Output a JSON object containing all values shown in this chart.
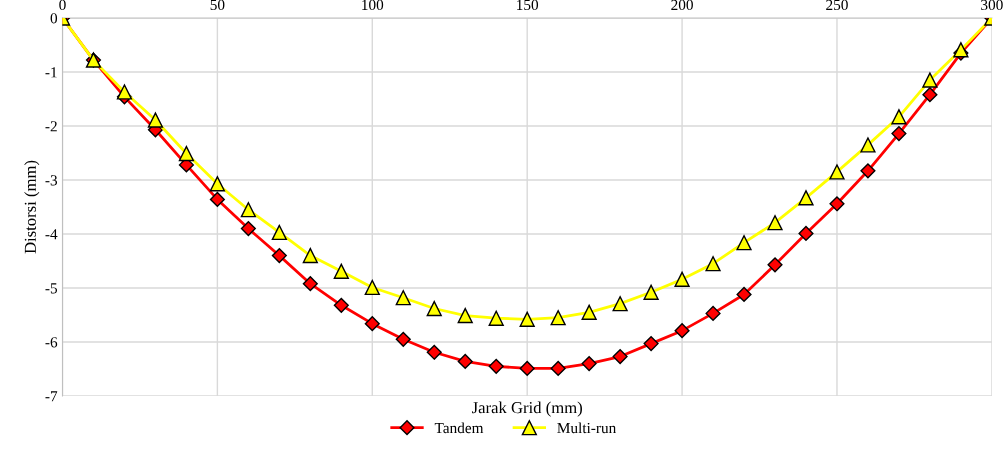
{
  "chart_data": {
    "type": "line",
    "xlabel": "Jarak Grid (mm)",
    "ylabel": "Distorsi (mm)",
    "x": [
      0,
      10,
      20,
      30,
      40,
      50,
      60,
      70,
      80,
      90,
      100,
      110,
      120,
      130,
      140,
      150,
      160,
      170,
      180,
      190,
      200,
      210,
      220,
      230,
      240,
      250,
      260,
      270,
      280,
      290,
      300
    ],
    "series": [
      {
        "name": "Tandem",
        "color": "#ff0000",
        "marker": "diamond",
        "values": [
          0,
          -0.78,
          -1.46,
          -2.07,
          -2.72,
          -3.36,
          -3.9,
          -4.4,
          -4.92,
          -5.32,
          -5.66,
          -5.95,
          -6.19,
          -6.36,
          -6.45,
          -6.49,
          -6.49,
          -6.4,
          -6.27,
          -6.03,
          -5.79,
          -5.47,
          -5.12,
          -4.57,
          -3.99,
          -3.44,
          -2.83,
          -2.14,
          -1.42,
          -0.65,
          0
        ]
      },
      {
        "name": "Multi-run",
        "color": "#ffff00",
        "marker": "triangle",
        "values": [
          0,
          -0.78,
          -1.37,
          -1.89,
          -2.51,
          -3.07,
          -3.55,
          -3.97,
          -4.4,
          -4.69,
          -4.99,
          -5.18,
          -5.38,
          -5.51,
          -5.56,
          -5.58,
          -5.55,
          -5.45,
          -5.29,
          -5.08,
          -4.84,
          -4.55,
          -4.16,
          -3.79,
          -3.33,
          -2.85,
          -2.35,
          -1.83,
          -1.15,
          -0.59,
          0
        ]
      }
    ],
    "xlim": [
      0,
      300
    ],
    "xticks": [
      0,
      50,
      100,
      150,
      200,
      250,
      300
    ],
    "ylim": [
      -7,
      0
    ],
    "yticks": [
      -7,
      -6,
      -5,
      -4,
      -3,
      -2,
      -1,
      0
    ],
    "grid": true,
    "legend": "bottom"
  }
}
